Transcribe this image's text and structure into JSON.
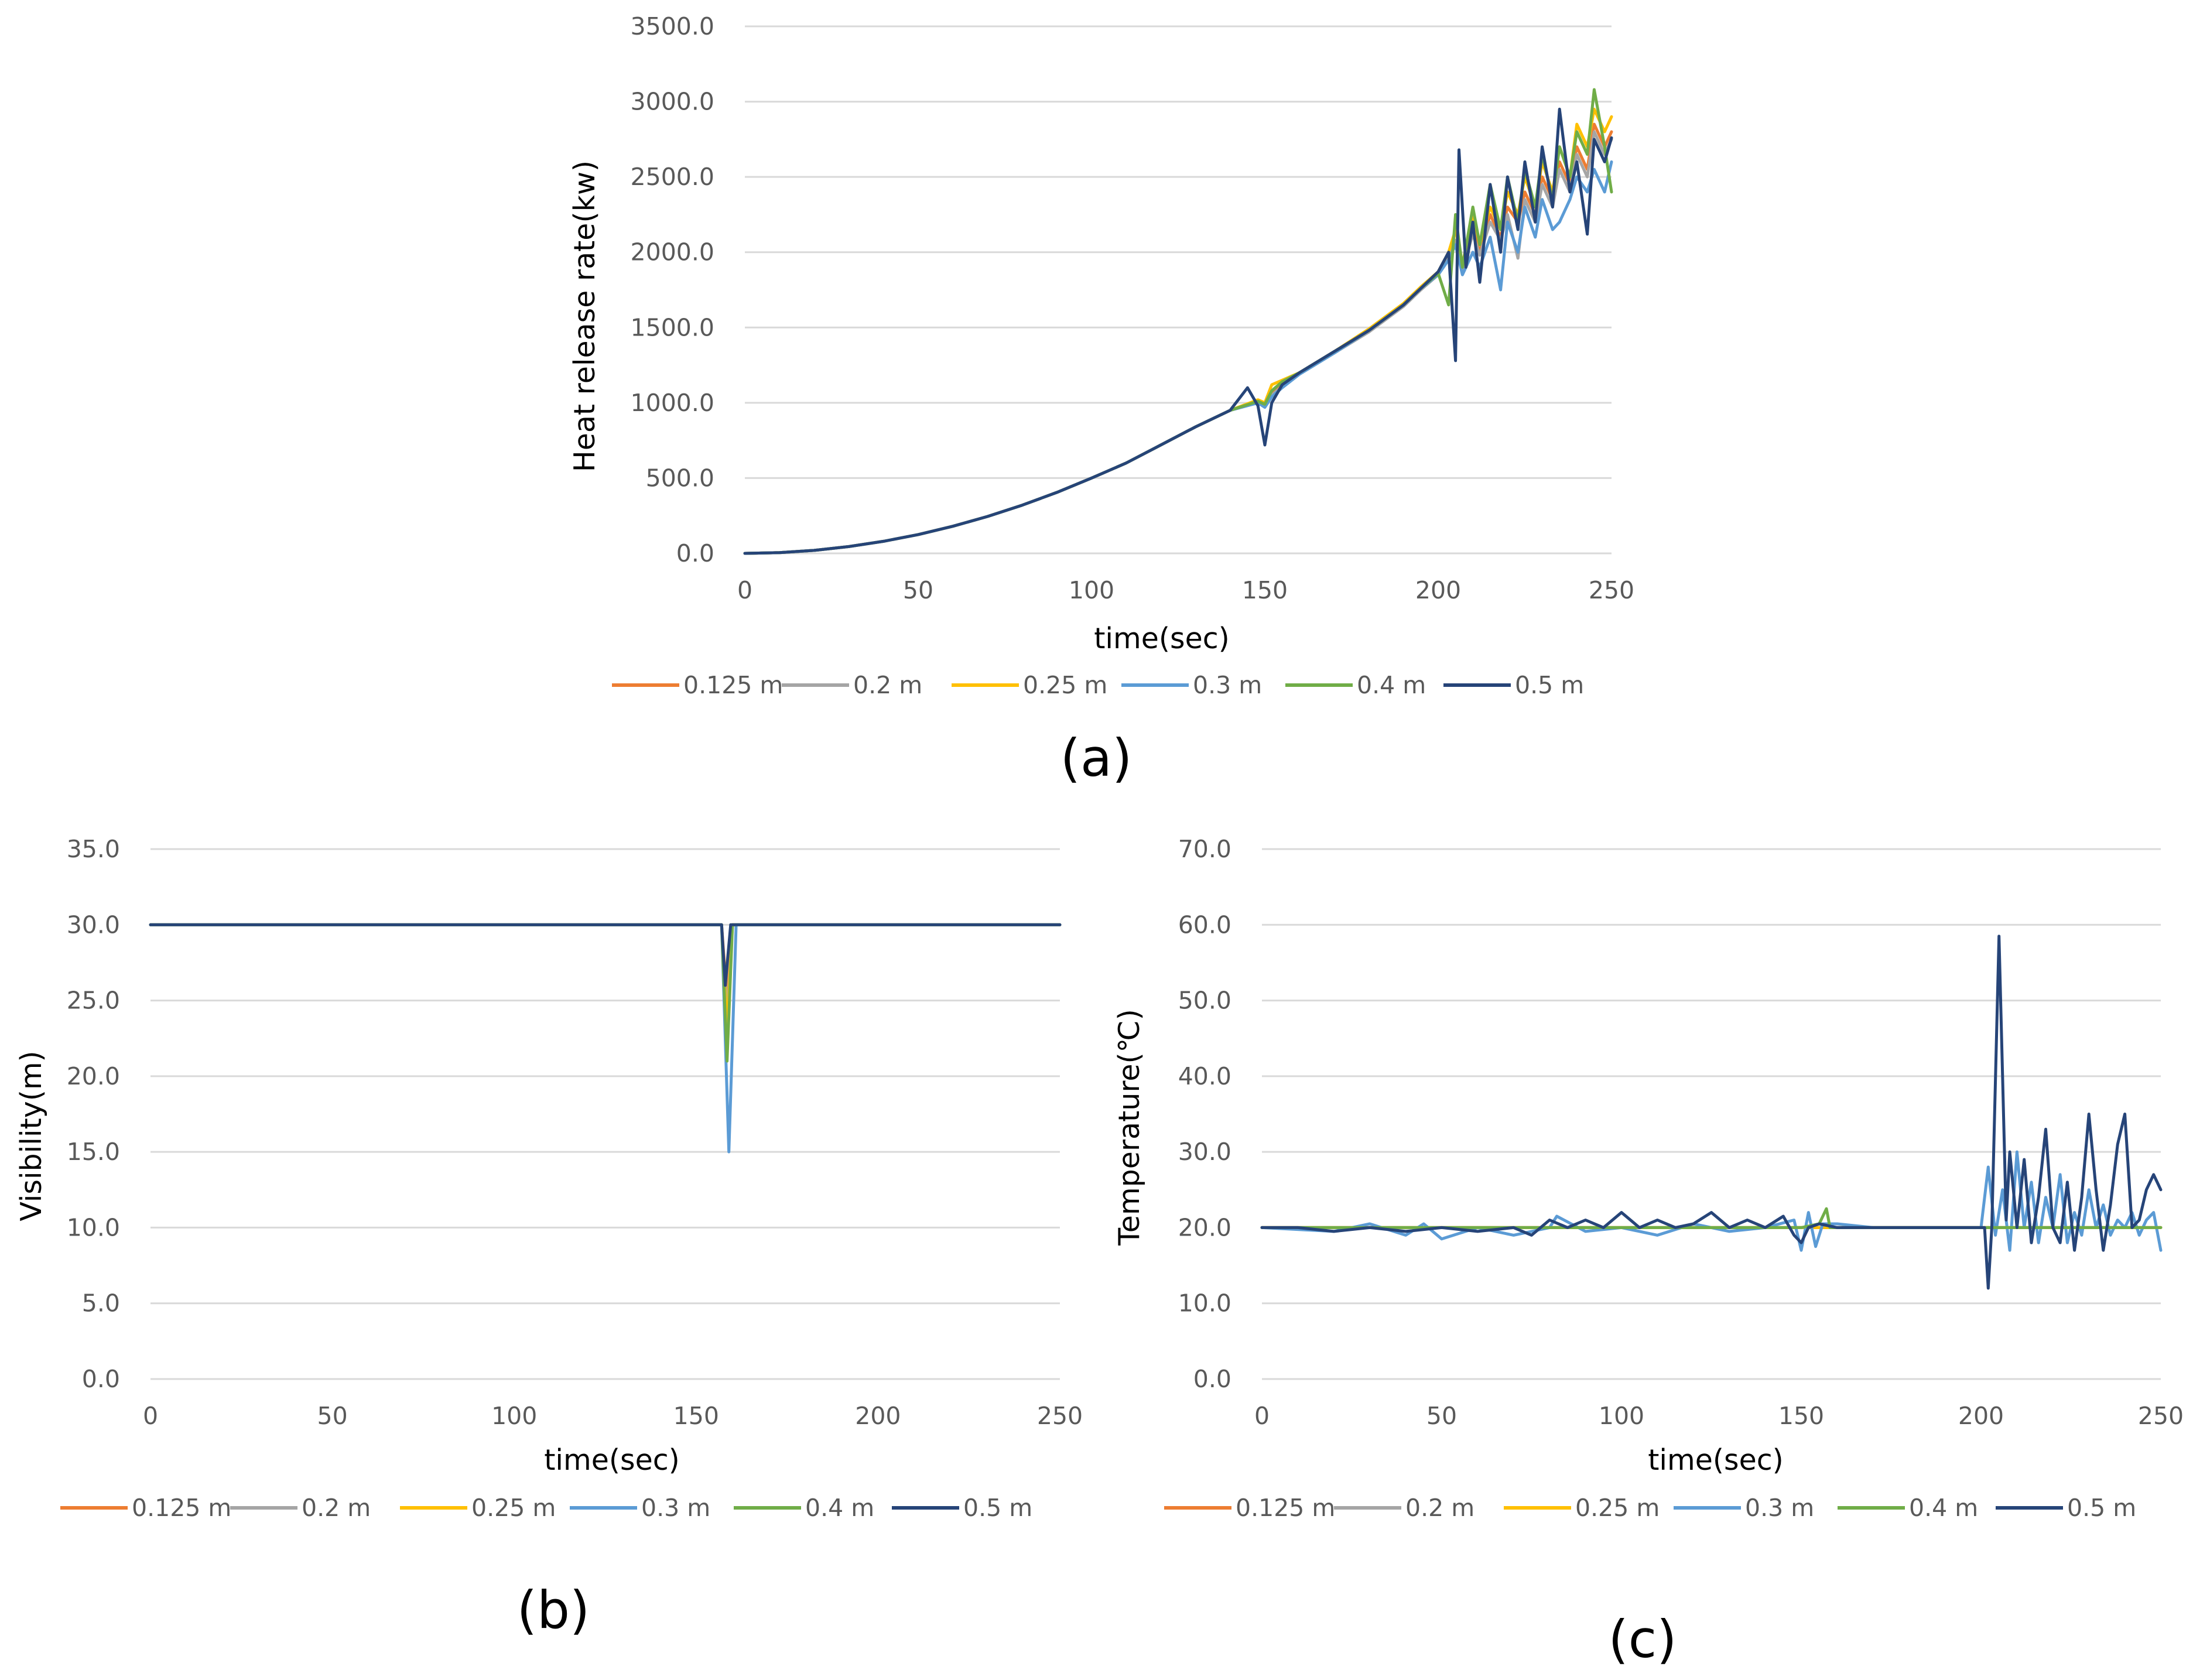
{
  "colors": {
    "0.125 m": "#ed7d31",
    "0.2 m": "#a5a5a5",
    "0.25 m": "#ffc000",
    "0.3 m": "#5b9bd5",
    "0.4 m": "#70ad47",
    "0.5 m": "#264478",
    "grid": "#d9d9d9",
    "tick_text": "#595959"
  },
  "chart_data": [
    {
      "id": "a",
      "type": "line",
      "caption": "(a)",
      "xlabel": "time(sec)",
      "ylabel": "Heat release rate(kw)",
      "xlim": [
        0,
        250
      ],
      "ylim": [
        0,
        3500
      ],
      "x_ticks": [
        "0",
        "50",
        "100",
        "150",
        "200",
        "250"
      ],
      "y_ticks": [
        "0.0",
        "500.0",
        "1000.0",
        "1500.0",
        "2000.0",
        "2500.0",
        "3000.0",
        "3500.0"
      ],
      "legend": [
        "0.125 m",
        "0.2 m",
        "0.25 m",
        "0.3 m",
        "0.4 m",
        "0.5 m"
      ],
      "series": [
        {
          "name": "0.125 m",
          "x": [
            0,
            10,
            20,
            30,
            40,
            50,
            60,
            70,
            80,
            90,
            100,
            110,
            120,
            130,
            140,
            148,
            150,
            152,
            155,
            160,
            170,
            180,
            190,
            195,
            200,
            203,
            205,
            207,
            210,
            212,
            215,
            218,
            220,
            223,
            225,
            228,
            230,
            233,
            235,
            238,
            240,
            243,
            245,
            248,
            250
          ],
          "values": [
            0,
            5,
            20,
            45,
            80,
            125,
            180,
            245,
            320,
            405,
            500,
            600,
            720,
            840,
            950,
            1010,
            990,
            1060,
            1120,
            1200,
            1340,
            1480,
            1650,
            1760,
            1860,
            1980,
            2060,
            1900,
            2150,
            2000,
            2250,
            2100,
            2300,
            2200,
            2400,
            2250,
            2500,
            2350,
            2600,
            2450,
            2700,
            2550,
            2850,
            2700,
            2800
          ]
        },
        {
          "name": "0.2 m",
          "x": [
            0,
            10,
            20,
            30,
            40,
            50,
            60,
            70,
            80,
            90,
            100,
            110,
            120,
            130,
            140,
            148,
            150,
            152,
            155,
            160,
            170,
            180,
            190,
            195,
            200,
            203,
            205,
            207,
            210,
            212,
            215,
            218,
            220,
            223,
            225,
            228,
            230,
            233,
            235,
            238,
            240,
            243,
            245,
            248,
            250
          ],
          "values": [
            0,
            5,
            20,
            45,
            80,
            125,
            180,
            245,
            320,
            405,
            500,
            600,
            720,
            840,
            950,
            1000,
            980,
            1050,
            1110,
            1190,
            1330,
            1470,
            1640,
            1750,
            1850,
            1960,
            2080,
            1880,
            2120,
            1980,
            2200,
            2080,
            2250,
            1960,
            2350,
            2200,
            2450,
            2300,
            2550,
            2400,
            2650,
            2500,
            2800,
            2650,
            2750
          ]
        },
        {
          "name": "0.25 m",
          "x": [
            0,
            10,
            20,
            30,
            40,
            50,
            60,
            70,
            80,
            90,
            100,
            110,
            120,
            130,
            140,
            148,
            150,
            152,
            155,
            160,
            170,
            180,
            190,
            195,
            200,
            203,
            205,
            207,
            210,
            212,
            215,
            218,
            220,
            223,
            225,
            228,
            230,
            233,
            235,
            238,
            240,
            243,
            245,
            248,
            250
          ],
          "values": [
            0,
            5,
            20,
            45,
            80,
            125,
            180,
            245,
            320,
            405,
            500,
            600,
            720,
            840,
            950,
            1020,
            1000,
            1120,
            1150,
            1200,
            1340,
            1490,
            1660,
            1770,
            1870,
            2000,
            2150,
            1920,
            2250,
            2050,
            2300,
            2150,
            2400,
            2250,
            2500,
            2300,
            2600,
            2400,
            2700,
            2500,
            2850,
            2700,
            2950,
            2800,
            2900
          ]
        },
        {
          "name": "0.3 m",
          "x": [
            0,
            10,
            20,
            30,
            40,
            50,
            60,
            70,
            80,
            90,
            100,
            110,
            120,
            130,
            140,
            148,
            150,
            152,
            155,
            160,
            170,
            180,
            190,
            195,
            200,
            203,
            205,
            207,
            210,
            212,
            215,
            218,
            220,
            223,
            225,
            228,
            230,
            233,
            235,
            238,
            240,
            243,
            245,
            248,
            250
          ],
          "values": [
            0,
            5,
            20,
            45,
            80,
            125,
            180,
            245,
            320,
            405,
            500,
            600,
            720,
            840,
            950,
            1000,
            970,
            1040,
            1100,
            1190,
            1330,
            1480,
            1650,
            1760,
            1850,
            1950,
            2050,
            1850,
            2000,
            1900,
            2100,
            1750,
            2200,
            2000,
            2300,
            2100,
            2350,
            2150,
            2200,
            2350,
            2500,
            2400,
            2550,
            2400,
            2600
          ]
        },
        {
          "name": "0.4 m",
          "x": [
            0,
            10,
            20,
            30,
            40,
            50,
            60,
            70,
            80,
            90,
            100,
            110,
            120,
            130,
            140,
            148,
            150,
            152,
            155,
            160,
            170,
            180,
            190,
            195,
            200,
            203,
            205,
            207,
            210,
            212,
            215,
            218,
            220,
            223,
            225,
            228,
            230,
            233,
            235,
            238,
            240,
            243,
            245,
            248,
            250
          ],
          "values": [
            0,
            5,
            20,
            45,
            80,
            125,
            180,
            245,
            320,
            405,
            500,
            600,
            720,
            840,
            950,
            1010,
            990,
            1080,
            1140,
            1200,
            1340,
            1480,
            1650,
            1760,
            1860,
            1650,
            2250,
            1900,
            2300,
            2050,
            2450,
            2150,
            2500,
            2200,
            2550,
            2300,
            2650,
            2350,
            2700,
            2500,
            2800,
            2650,
            3080,
            2700,
            2400
          ]
        },
        {
          "name": "0.5 m",
          "x": [
            0,
            10,
            20,
            30,
            40,
            50,
            60,
            70,
            80,
            90,
            100,
            110,
            120,
            130,
            140,
            145,
            148,
            150,
            152,
            155,
            160,
            170,
            180,
            190,
            195,
            200,
            203,
            205,
            206,
            208,
            210,
            212,
            215,
            218,
            220,
            223,
            225,
            228,
            230,
            233,
            235,
            238,
            240,
            243,
            245,
            248,
            250
          ],
          "values": [
            0,
            5,
            20,
            45,
            80,
            125,
            180,
            245,
            320,
            405,
            500,
            600,
            720,
            840,
            950,
            1100,
            980,
            720,
            1000,
            1120,
            1200,
            1340,
            1480,
            1650,
            1760,
            1870,
            2000,
            1280,
            2680,
            1900,
            2200,
            1800,
            2450,
            2000,
            2500,
            2150,
            2600,
            2200,
            2700,
            2300,
            2950,
            2400,
            2600,
            2120,
            2750,
            2600,
            2760
          ]
        }
      ]
    },
    {
      "id": "b",
      "type": "line",
      "caption": "(b)",
      "xlabel": "time(sec)",
      "ylabel": "Visibility(m)",
      "xlim": [
        0,
        250
      ],
      "ylim": [
        0,
        35
      ],
      "x_ticks": [
        "0",
        "50",
        "100",
        "150",
        "200",
        "250"
      ],
      "y_ticks": [
        "0.0",
        "5.0",
        "10.0",
        "15.0",
        "20.0",
        "25.0",
        "30.0",
        "35.0"
      ],
      "legend": [
        "0.125 m",
        "0.2 m",
        "0.25 m",
        "0.3 m",
        "0.4 m",
        "0.5 m"
      ],
      "series": [
        {
          "name": "0.125 m",
          "x": [
            0,
            157,
            158.5,
            160,
            161,
            250
          ],
          "values": [
            30,
            30,
            25,
            30,
            30,
            30
          ]
        },
        {
          "name": "0.2 m",
          "x": [
            0,
            157,
            158.5,
            160,
            161,
            250
          ],
          "values": [
            30,
            30,
            24,
            30,
            30,
            30
          ]
        },
        {
          "name": "0.25 m",
          "x": [
            0,
            157,
            158.5,
            160,
            161,
            250
          ],
          "values": [
            30,
            30,
            23,
            30,
            30,
            30
          ]
        },
        {
          "name": "0.3 m",
          "x": [
            0,
            157,
            159,
            161,
            162,
            250
          ],
          "values": [
            30,
            30,
            15,
            30,
            30,
            30
          ]
        },
        {
          "name": "0.4 m",
          "x": [
            0,
            157,
            158.5,
            160,
            161,
            250
          ],
          "values": [
            30,
            30,
            21,
            30,
            30,
            30
          ]
        },
        {
          "name": "0.5 m",
          "x": [
            0,
            157,
            158,
            159.5,
            160.5,
            250
          ],
          "values": [
            30,
            30,
            26,
            30,
            30,
            30
          ]
        }
      ]
    },
    {
      "id": "c",
      "type": "line",
      "caption": "(c)",
      "xlabel": "time(sec)",
      "ylabel": "Temperature(℃)",
      "xlim": [
        0,
        250
      ],
      "ylim": [
        0,
        70
      ],
      "x_ticks": [
        "0",
        "50",
        "100",
        "150",
        "200",
        "250"
      ],
      "y_ticks": [
        "0.0",
        "10.0",
        "20.0",
        "30.0",
        "40.0",
        "50.0",
        "60.0",
        "70.0"
      ],
      "legend": [
        "0.125 m",
        "0.2 m",
        "0.25 m",
        "0.3 m",
        "0.4 m",
        "0.5 m"
      ],
      "series": [
        {
          "name": "0.125 m",
          "x": [
            0,
            250
          ],
          "values": [
            20,
            20
          ]
        },
        {
          "name": "0.2 m",
          "x": [
            0,
            250
          ],
          "values": [
            20,
            20
          ]
        },
        {
          "name": "0.25 m",
          "x": [
            0,
            250
          ],
          "values": [
            20,
            20
          ]
        },
        {
          "name": "0.3 m",
          "x": [
            0,
            20,
            30,
            40,
            45,
            50,
            60,
            70,
            80,
            82,
            90,
            100,
            110,
            120,
            130,
            140,
            148,
            150,
            152,
            154,
            156,
            160,
            170,
            180,
            190,
            200,
            202,
            204,
            206,
            208,
            210,
            212,
            214,
            216,
            218,
            220,
            222,
            224,
            226,
            228,
            230,
            232,
            234,
            236,
            238,
            240,
            242,
            244,
            246,
            248,
            250
          ],
          "values": [
            20,
            19.5,
            20.5,
            19,
            20.5,
            18.5,
            20,
            19,
            20,
            21.5,
            19.5,
            20,
            19,
            20.5,
            19.5,
            20,
            21,
            17,
            22,
            17.5,
            20.5,
            20.5,
            20,
            20,
            20,
            20,
            28,
            19,
            25,
            17,
            30,
            20,
            26,
            18,
            24,
            20,
            27,
            18,
            22,
            19,
            25,
            20,
            23,
            19,
            21,
            20,
            22,
            19,
            21,
            22,
            17
          ]
        },
        {
          "name": "0.4 m",
          "x": [
            0,
            80,
            100,
            120,
            140,
            150,
            155,
            157,
            158,
            160,
            170,
            200,
            250
          ],
          "values": [
            20,
            20,
            20,
            20,
            20,
            20,
            20.5,
            22.5,
            20,
            20,
            20,
            20,
            20
          ]
        },
        {
          "name": "0.5 m",
          "x": [
            0,
            10,
            20,
            30,
            40,
            50,
            60,
            70,
            75,
            80,
            85,
            90,
            95,
            100,
            105,
            110,
            115,
            120,
            125,
            130,
            135,
            140,
            145,
            148,
            150,
            152,
            155,
            160,
            170,
            180,
            190,
            200,
            201,
            202,
            203,
            205,
            206,
            207,
            208,
            210,
            212,
            214,
            216,
            218,
            220,
            222,
            224,
            226,
            228,
            230,
            232,
            234,
            236,
            238,
            240,
            242,
            244,
            246,
            248,
            250
          ],
          "values": [
            20,
            20,
            19.5,
            20,
            19.5,
            20,
            19.5,
            20,
            19,
            21,
            20,
            21,
            20,
            22,
            20,
            21,
            20,
            20.5,
            22,
            20,
            21,
            20,
            21.5,
            19,
            18,
            20,
            20.5,
            20,
            20,
            20,
            20,
            20,
            20,
            12,
            20,
            58.5,
            40,
            21,
            30,
            20,
            29,
            18,
            24,
            33,
            20,
            18,
            26,
            17,
            24,
            35,
            25,
            17,
            23,
            31,
            35,
            20,
            21,
            25,
            27,
            25
          ]
        }
      ]
    }
  ]
}
